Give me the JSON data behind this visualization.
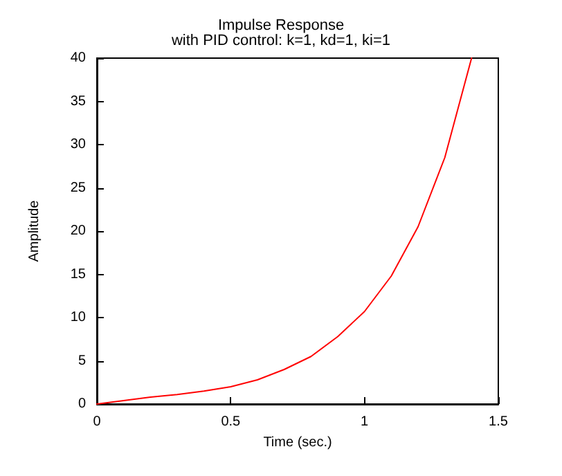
{
  "chart_data": {
    "type": "line",
    "title": "Impulse Response",
    "subtitle": "with PID control: k=1, kd=1, ki=1",
    "xlabel": "Time (sec.)",
    "ylabel": "Amplitude",
    "x": [
      0,
      0.1,
      0.2,
      0.3,
      0.4,
      0.5,
      0.6,
      0.7,
      0.8,
      0.9,
      1.0,
      1.1,
      1.2,
      1.3,
      1.4
    ],
    "series": [
      {
        "color": "#ff0000",
        "values": [
          0,
          0.4,
          0.8,
          1.1,
          1.5,
          2.0,
          2.8,
          4.0,
          5.5,
          7.8,
          10.7,
          14.8,
          20.5,
          28.5,
          40
        ]
      }
    ],
    "xlim": [
      0,
      1.5
    ],
    "xticks": [
      0,
      0.5,
      1,
      1.5
    ],
    "ylim": [
      0,
      40
    ],
    "yticks": [
      0,
      5,
      10,
      15,
      20,
      25,
      30,
      35,
      40
    ],
    "grid": false,
    "marker": "none",
    "line_style": "solid"
  }
}
